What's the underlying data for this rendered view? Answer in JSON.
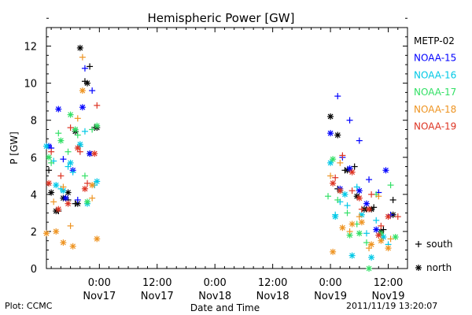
{
  "chart_data": {
    "type": "scatter",
    "title": "Hemispheric Power [GW]",
    "ylabel": "P [GW]",
    "xlabel": "Date and Time",
    "ylim": [
      0,
      13
    ],
    "xlim": [
      "2011-11-16 13:00",
      "2011-11-19 16:00"
    ],
    "y_ticks": [
      "0",
      "2",
      "4",
      "6",
      "8",
      "10",
      "12"
    ],
    "x_ticks": [
      {
        "time": "2011-11-17 00:00",
        "line1": "0:00",
        "line2": "Nov17"
      },
      {
        "time": "2011-11-17 12:00",
        "line1": "12:00",
        "line2": "Nov17"
      },
      {
        "time": "2011-11-18 00:00",
        "line1": "0:00",
        "line2": "Nov18"
      },
      {
        "time": "2011-11-18 12:00",
        "line1": "12:00",
        "line2": "Nov18"
      },
      {
        "time": "2011-11-19 00:00",
        "line1": "0:00",
        "line2": "Nov19"
      },
      {
        "time": "2011-11-19 12:00",
        "line1": "12:00",
        "line2": "Nov19"
      }
    ],
    "legend_placement": "right",
    "marker_legend": [
      {
        "marker": "+",
        "label": "south"
      },
      {
        "marker": "*",
        "label": "north"
      }
    ],
    "series": [
      {
        "name": "METP-02",
        "color": "#000000",
        "south": [
          [
            "2011-11-16 13:30",
            5.3
          ],
          [
            "2011-11-16 15:30",
            3.1
          ],
          [
            "2011-11-16 17:30",
            3.7
          ],
          [
            "2011-11-16 19:00",
            3.5
          ],
          [
            "2011-11-16 21:00",
            10.1
          ],
          [
            "2011-11-16 22:00",
            10.9
          ],
          [
            "2011-11-16 23:00",
            7.6
          ],
          [
            "2011-11-19 01:30",
            4.3
          ],
          [
            "2011-11-19 03:00",
            5.3
          ],
          [
            "2011-11-19 05:00",
            5.5
          ],
          [
            "2011-11-19 07:30",
            3.2
          ],
          [
            "2011-11-19 09:00",
            3.3
          ],
          [
            "2011-11-19 11:00",
            2.1
          ],
          [
            "2011-11-19 13:00",
            3.7
          ]
        ],
        "north": [
          [
            "2011-11-16 14:00",
            4.1
          ],
          [
            "2011-11-16 15:00",
            3.1
          ],
          [
            "2011-11-16 16:30",
            3.8
          ],
          [
            "2011-11-16 17:30",
            4.1
          ],
          [
            "2011-11-16 19:00",
            7.4
          ],
          [
            "2011-11-16 19:30",
            3.5
          ],
          [
            "2011-11-16 20:00",
            11.9
          ],
          [
            "2011-11-16 21:30",
            10.0
          ],
          [
            "2011-11-16 22:00",
            6.2
          ],
          [
            "2011-11-16 23:30",
            7.6
          ],
          [
            "2011-11-19 00:00",
            8.2
          ],
          [
            "2011-11-19 01:30",
            7.2
          ],
          [
            "2011-11-19 03:30",
            5.3
          ],
          [
            "2011-11-19 05:30",
            3.9
          ],
          [
            "2011-11-19 07:00",
            3.2
          ],
          [
            "2011-11-19 08:30",
            3.2
          ],
          [
            "2011-11-19 10:30",
            2.0
          ],
          [
            "2011-11-19 13:00",
            2.9
          ]
        ]
      },
      {
        "name": "NOAA-15",
        "color": "#0000ff",
        "south": [
          [
            "2011-11-16 14:00",
            6.5
          ],
          [
            "2011-11-16 16:30",
            5.9
          ],
          [
            "2011-11-16 19:30",
            3.7
          ],
          [
            "2011-11-16 21:00",
            10.8
          ],
          [
            "2011-11-16 22:30",
            9.6
          ],
          [
            "2011-11-19 01:30",
            9.3
          ],
          [
            "2011-11-19 02:30",
            6.0
          ],
          [
            "2011-11-19 04:00",
            8.0
          ],
          [
            "2011-11-19 06:00",
            6.9
          ],
          [
            "2011-11-19 08:00",
            4.8
          ],
          [
            "2011-11-19 10:00",
            4.1
          ],
          [
            "2011-11-19 12:30",
            2.9
          ]
        ],
        "north": [
          [
            "2011-11-16 13:30",
            6.6
          ],
          [
            "2011-11-16 15:30",
            8.6
          ],
          [
            "2011-11-16 17:00",
            3.8
          ],
          [
            "2011-11-16 18:30",
            5.3
          ],
          [
            "2011-11-16 20:30",
            8.7
          ],
          [
            "2011-11-16 22:00",
            6.2
          ],
          [
            "2011-11-19 00:00",
            7.3
          ],
          [
            "2011-11-19 02:00",
            4.3
          ],
          [
            "2011-11-19 04:00",
            5.4
          ],
          [
            "2011-11-19 06:00",
            4.2
          ],
          [
            "2011-11-19 07:30",
            3.5
          ],
          [
            "2011-11-19 09:30",
            2.1
          ],
          [
            "2011-11-19 11:30",
            5.3
          ]
        ]
      },
      {
        "name": "NOAA-16",
        "color": "#00c8e6",
        "south": [
          [
            "2011-11-16 14:30",
            5.8
          ],
          [
            "2011-11-16 16:00",
            4.3
          ],
          [
            "2011-11-16 17:30",
            5.5
          ],
          [
            "2011-11-16 18:30",
            5.2
          ],
          [
            "2011-11-16 20:00",
            6.6
          ],
          [
            "2011-11-16 21:00",
            7.4
          ],
          [
            "2011-11-16 23:00",
            4.5
          ],
          [
            "2011-11-19 01:00",
            2.9
          ],
          [
            "2011-11-19 02:00",
            3.6
          ],
          [
            "2011-11-19 03:30",
            3.4
          ],
          [
            "2011-11-19 05:30",
            4.4
          ],
          [
            "2011-11-19 07:30",
            1.9
          ],
          [
            "2011-11-19 09:30",
            2.6
          ],
          [
            "2011-11-19 12:00",
            1.3
          ]
        ],
        "north": [
          [
            "2011-11-16 13:00",
            6.6
          ],
          [
            "2011-11-16 15:00",
            4.5
          ],
          [
            "2011-11-16 16:30",
            4.2
          ],
          [
            "2011-11-16 18:00",
            5.7
          ],
          [
            "2011-11-16 20:00",
            6.7
          ],
          [
            "2011-11-16 21:30",
            3.5
          ],
          [
            "2011-11-16 23:30",
            4.7
          ],
          [
            "2011-11-19 00:00",
            5.7
          ],
          [
            "2011-11-19 01:00",
            2.8
          ],
          [
            "2011-11-19 03:00",
            4.0
          ],
          [
            "2011-11-19 04:30",
            0.7
          ],
          [
            "2011-11-19 06:30",
            2.9
          ],
          [
            "2011-11-19 08:30",
            0.6
          ],
          [
            "2011-11-19 11:00",
            1.7
          ]
        ]
      },
      {
        "name": "NOAA-17",
        "color": "#33e066",
        "south": [
          [
            "2011-11-16 14:00",
            5.7
          ],
          [
            "2011-11-16 15:30",
            7.3
          ],
          [
            "2011-11-16 17:30",
            6.3
          ],
          [
            "2011-11-16 19:30",
            7.2
          ],
          [
            "2011-11-16 21:00",
            5.0
          ],
          [
            "2011-11-16 22:30",
            7.5
          ],
          [
            "2011-11-18 23:30",
            3.9
          ],
          [
            "2011-11-19 01:30",
            3.7
          ],
          [
            "2011-11-19 03:30",
            3.0
          ],
          [
            "2011-11-19 05:30",
            2.4
          ],
          [
            "2011-11-19 07:30",
            1.4
          ],
          [
            "2011-11-19 09:30",
            4.0
          ],
          [
            "2011-11-19 12:30",
            4.5
          ]
        ],
        "north": [
          [
            "2011-11-16 13:30",
            6.0
          ],
          [
            "2011-11-16 16:00",
            6.9
          ],
          [
            "2011-11-16 18:00",
            8.3
          ],
          [
            "2011-11-16 19:00",
            7.5
          ],
          [
            "2011-11-16 21:30",
            3.6
          ],
          [
            "2011-11-16 23:30",
            7.7
          ],
          [
            "2011-11-19 00:30",
            5.9
          ],
          [
            "2011-11-19 02:00",
            4.2
          ],
          [
            "2011-11-19 04:00",
            1.8
          ],
          [
            "2011-11-19 06:00",
            1.9
          ],
          [
            "2011-11-19 08:00",
            0.0
          ],
          [
            "2011-11-19 10:30",
            1.9
          ],
          [
            "2011-11-19 13:30",
            1.7
          ]
        ]
      },
      {
        "name": "NOAA-18",
        "color": "#ee9422",
        "south": [
          [
            "2011-11-16 14:30",
            3.6
          ],
          [
            "2011-11-16 16:30",
            4.4
          ],
          [
            "2011-11-16 18:00",
            2.3
          ],
          [
            "2011-11-16 19:30",
            8.1
          ],
          [
            "2011-11-16 20:30",
            11.4
          ],
          [
            "2011-11-16 22:30",
            3.8
          ],
          [
            "2011-11-19 00:00",
            5.0
          ],
          [
            "2011-11-19 02:00",
            5.7
          ],
          [
            "2011-11-19 04:00",
            2.0
          ],
          [
            "2011-11-19 06:00",
            2.8
          ],
          [
            "2011-11-19 08:00",
            1.1
          ],
          [
            "2011-11-19 10:00",
            3.9
          ],
          [
            "2011-11-19 12:30",
            1.6
          ]
        ],
        "north": [
          [
            "2011-11-16 13:00",
            1.9
          ],
          [
            "2011-11-16 15:00",
            2.0
          ],
          [
            "2011-11-16 16:30",
            1.4
          ],
          [
            "2011-11-16 18:30",
            1.2
          ],
          [
            "2011-11-16 20:30",
            9.6
          ],
          [
            "2011-11-16 22:30",
            4.5
          ],
          [
            "2011-11-16 23:30",
            1.6
          ],
          [
            "2011-11-19 00:30",
            0.9
          ],
          [
            "2011-11-19 02:30",
            2.2
          ],
          [
            "2011-11-19 04:30",
            2.4
          ],
          [
            "2011-11-19 06:30",
            2.5
          ],
          [
            "2011-11-19 08:30",
            1.3
          ],
          [
            "2011-11-19 10:30",
            1.5
          ],
          [
            "2011-11-19 12:00",
            1.1
          ]
        ]
      },
      {
        "name": "NOAA-19",
        "color": "#dd3322",
        "south": [
          [
            "2011-11-16 14:00",
            6.3
          ],
          [
            "2011-11-16 16:00",
            5.0
          ],
          [
            "2011-11-16 18:00",
            7.6
          ],
          [
            "2011-11-16 20:00",
            6.3
          ],
          [
            "2011-11-16 21:30",
            4.6
          ],
          [
            "2011-11-16 23:30",
            8.8
          ],
          [
            "2011-11-19 01:00",
            4.9
          ],
          [
            "2011-11-19 02:30",
            6.1
          ],
          [
            "2011-11-19 04:30",
            4.2
          ],
          [
            "2011-11-19 06:30",
            3.2
          ],
          [
            "2011-11-19 08:30",
            4.0
          ],
          [
            "2011-11-19 10:30",
            2.3
          ],
          [
            "2011-11-19 14:00",
            2.8
          ]
        ],
        "north": [
          [
            "2011-11-16 13:30",
            4.6
          ],
          [
            "2011-11-16 15:30",
            3.2
          ],
          [
            "2011-11-16 17:30",
            3.5
          ],
          [
            "2011-11-16 19:30",
            6.5
          ],
          [
            "2011-11-16 21:00",
            4.3
          ],
          [
            "2011-11-16 23:00",
            6.2
          ],
          [
            "2011-11-19 00:30",
            4.6
          ],
          [
            "2011-11-19 02:00",
            4.2
          ],
          [
            "2011-11-19 04:30",
            5.2
          ],
          [
            "2011-11-19 06:00",
            3.8
          ],
          [
            "2011-11-19 08:00",
            3.2
          ],
          [
            "2011-11-19 10:00",
            1.8
          ],
          [
            "2011-11-19 12:00",
            2.8
          ]
        ]
      }
    ]
  },
  "footer": {
    "plot_label": "Plot: CCMC",
    "timestamp": "2011/11/19 13:20:07"
  }
}
